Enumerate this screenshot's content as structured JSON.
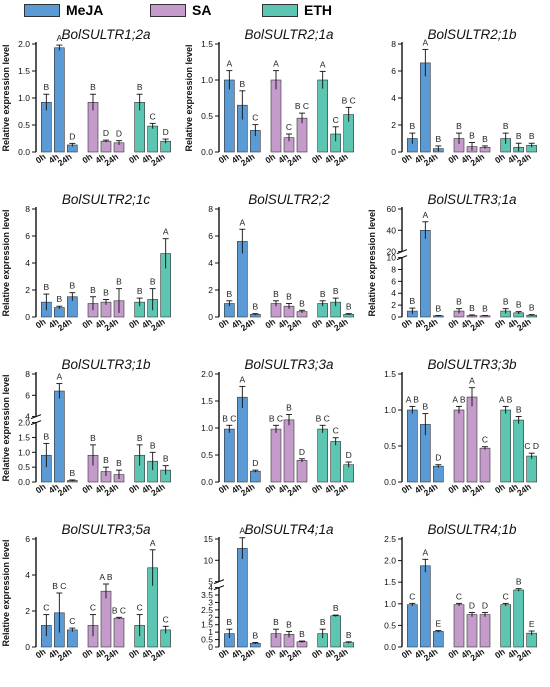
{
  "legend": [
    {
      "name": "MeJA",
      "color": "#5b9bd5"
    },
    {
      "name": "SA",
      "color": "#c49bcb"
    },
    {
      "name": "ETH",
      "color": "#5cc6b2"
    }
  ],
  "chart_data": [
    {
      "type": "bar",
      "title": "BolSULTR1;2a",
      "ylabel": "Relative expression level",
      "ylim": [
        0,
        2
      ],
      "yticks": [
        "0.0",
        "0.5",
        "1.0",
        "1.5",
        "2.0"
      ],
      "categories": [
        "0h",
        "4h",
        "24h"
      ],
      "series": [
        {
          "name": "MeJA",
          "values": [
            0.92,
            1.93,
            0.13
          ],
          "errors": [
            0.15,
            0.05,
            0.03
          ],
          "letters": [
            "B",
            "A",
            "D"
          ]
        },
        {
          "name": "SA",
          "values": [
            0.92,
            0.2,
            0.17
          ],
          "errors": [
            0.15,
            0.02,
            0.04
          ],
          "letters": [
            "B",
            "D",
            "D"
          ]
        },
        {
          "name": "ETH",
          "values": [
            0.92,
            0.48,
            0.2
          ],
          "errors": [
            0.15,
            0.05,
            0.04
          ],
          "letters": [
            "B",
            "C",
            "D"
          ]
        }
      ]
    },
    {
      "type": "bar",
      "title": "BolSULTR2;1a",
      "ylabel": "Relative expression level",
      "ylim": [
        0,
        1.5
      ],
      "yticks": [
        "0.0",
        "0.5",
        "1.0",
        "1.5"
      ],
      "categories": [
        "0h",
        "4h",
        "24h"
      ],
      "series": [
        {
          "name": "MeJA",
          "values": [
            1.0,
            0.65,
            0.3
          ],
          "errors": [
            0.13,
            0.2,
            0.08
          ],
          "letters": [
            "A",
            "B",
            "C"
          ]
        },
        {
          "name": "SA",
          "values": [
            1.0,
            0.2,
            0.47
          ],
          "errors": [
            0.13,
            0.05,
            0.07
          ],
          "letters": [
            "A",
            "C",
            "B C"
          ]
        },
        {
          "name": "ETH",
          "values": [
            1.0,
            0.25,
            0.52
          ],
          "errors": [
            0.12,
            0.1,
            0.1
          ],
          "letters": [
            "A",
            "C",
            "B C"
          ]
        }
      ]
    },
    {
      "type": "bar",
      "title": "BolSULTR2;1b",
      "ylabel": "",
      "ylim": [
        0,
        8
      ],
      "yticks": [
        "0",
        "2",
        "4",
        "6",
        "8"
      ],
      "categories": [
        "0h",
        "4h",
        "24h"
      ],
      "series": [
        {
          "name": "MeJA",
          "values": [
            1.0,
            6.6,
            0.25
          ],
          "errors": [
            0.4,
            1.0,
            0.2
          ],
          "letters": [
            "B",
            "A",
            "B"
          ]
        },
        {
          "name": "SA",
          "values": [
            1.0,
            0.4,
            0.35
          ],
          "errors": [
            0.4,
            0.3,
            0.1
          ],
          "letters": [
            "B",
            "B",
            "B"
          ]
        },
        {
          "name": "ETH",
          "values": [
            1.0,
            0.35,
            0.5
          ],
          "errors": [
            0.4,
            0.3,
            0.15
          ],
          "letters": [
            "B",
            "B",
            "B"
          ]
        }
      ]
    },
    {
      "type": "bar",
      "title": "BolSULTR2;1c",
      "ylabel": "Relative expression level",
      "ylim": [
        0,
        8
      ],
      "yticks": [
        "0",
        "2",
        "4",
        "6",
        "8"
      ],
      "categories": [
        "0h",
        "4h",
        "24h"
      ],
      "series": [
        {
          "name": "MeJA",
          "values": [
            1.1,
            0.7,
            1.5
          ],
          "errors": [
            0.6,
            0.1,
            0.3
          ],
          "letters": [
            "B",
            "B",
            "B"
          ]
        },
        {
          "name": "SA",
          "values": [
            1.0,
            1.1,
            1.2
          ],
          "errors": [
            0.5,
            0.2,
            0.9
          ],
          "letters": [
            "B",
            "B",
            "B"
          ]
        },
        {
          "name": "ETH",
          "values": [
            1.1,
            1.3,
            4.7
          ],
          "errors": [
            0.3,
            0.8,
            1.1
          ],
          "letters": [
            "B",
            "B",
            "A"
          ]
        }
      ]
    },
    {
      "type": "bar",
      "title": "BolSULTR2;2",
      "ylabel": "",
      "ylim": [
        0,
        8
      ],
      "yticks": [
        "0",
        "2",
        "4",
        "6",
        "8"
      ],
      "categories": [
        "0h",
        "4h",
        "24h"
      ],
      "series": [
        {
          "name": "MeJA",
          "values": [
            1.0,
            5.6,
            0.2
          ],
          "errors": [
            0.2,
            0.9,
            0.05
          ],
          "letters": [
            "B",
            "A",
            "B"
          ]
        },
        {
          "name": "SA",
          "values": [
            1.0,
            0.8,
            0.4
          ],
          "errors": [
            0.2,
            0.2,
            0.1
          ],
          "letters": [
            "B",
            "B",
            "B"
          ]
        },
        {
          "name": "ETH",
          "values": [
            1.0,
            1.1,
            0.2
          ],
          "errors": [
            0.2,
            0.3,
            0.05
          ],
          "letters": [
            "B",
            "B",
            "B"
          ]
        }
      ]
    },
    {
      "type": "bar",
      "title": "BolSULTR3;1a",
      "ylabel": "Relative expression level",
      "yaxis_break": [
        10,
        20
      ],
      "yticks": [
        "0",
        "2",
        "4",
        "6",
        "8",
        "10",
        "20",
        "40",
        "60"
      ],
      "categories": [
        "0h",
        "4h",
        "24h"
      ],
      "series": [
        {
          "name": "MeJA",
          "values": [
            1.0,
            40,
            0.2
          ],
          "errors": [
            0.5,
            8,
            0.05
          ],
          "letters": [
            "B",
            "A",
            "B"
          ]
        },
        {
          "name": "SA",
          "values": [
            1.0,
            0.25,
            0.2
          ],
          "errors": [
            0.4,
            0.1,
            0.05
          ],
          "letters": [
            "B",
            "B",
            "B"
          ]
        },
        {
          "name": "ETH",
          "values": [
            1.0,
            0.7,
            0.3
          ],
          "errors": [
            0.4,
            0.2,
            0.1
          ],
          "letters": [
            "B",
            "B",
            "B"
          ]
        }
      ]
    },
    {
      "type": "bar",
      "title": "BolSULTR3;1b",
      "ylabel": "Relative expression level",
      "yaxis_break": [
        2,
        4
      ],
      "yticks": [
        "0.0",
        "0.5",
        "1.0",
        "1.5",
        "2.0",
        "4",
        "6",
        "8"
      ],
      "categories": [
        "0h",
        "4h",
        "24h"
      ],
      "series": [
        {
          "name": "MeJA",
          "values": [
            0.9,
            6.4,
            0.05
          ],
          "errors": [
            0.4,
            0.7,
            0.02
          ],
          "letters": [
            "B",
            "A",
            "B"
          ]
        },
        {
          "name": "SA",
          "values": [
            0.9,
            0.35,
            0.25
          ],
          "errors": [
            0.35,
            0.15,
            0.15
          ],
          "letters": [
            "B",
            "B",
            "B"
          ]
        },
        {
          "name": "ETH",
          "values": [
            0.9,
            0.7,
            0.4
          ],
          "errors": [
            0.35,
            0.3,
            0.15
          ],
          "letters": [
            "B",
            "B",
            "B"
          ]
        }
      ]
    },
    {
      "type": "bar",
      "title": "BolSULTR3;3a",
      "ylabel": "",
      "ylim": [
        0,
        2
      ],
      "yticks": [
        "0.0",
        "0.5",
        "1.0",
        "1.5",
        "2.0"
      ],
      "categories": [
        "0h",
        "4h",
        "24h"
      ],
      "series": [
        {
          "name": "MeJA",
          "values": [
            0.98,
            1.57,
            0.2
          ],
          "errors": [
            0.07,
            0.2,
            0.02
          ],
          "letters": [
            "B C",
            "A",
            "D"
          ]
        },
        {
          "name": "SA",
          "values": [
            0.98,
            1.15,
            0.4
          ],
          "errors": [
            0.07,
            0.1,
            0.03
          ],
          "letters": [
            "B C",
            "B",
            "D"
          ]
        },
        {
          "name": "ETH",
          "values": [
            0.98,
            0.75,
            0.32
          ],
          "errors": [
            0.07,
            0.07,
            0.05
          ],
          "letters": [
            "B C",
            "C",
            "D"
          ]
        }
      ]
    },
    {
      "type": "bar",
      "title": "BolSULTR3;3b",
      "ylabel": "",
      "ylim": [
        0,
        1.5
      ],
      "yticks": [
        "0.0",
        "0.5",
        "1.0",
        "1.5"
      ],
      "categories": [
        "0h",
        "4h",
        "24h"
      ],
      "series": [
        {
          "name": "MeJA",
          "values": [
            1.0,
            0.8,
            0.22
          ],
          "errors": [
            0.05,
            0.15,
            0.02
          ],
          "letters": [
            "A B",
            "B",
            "D"
          ]
        },
        {
          "name": "SA",
          "values": [
            1.0,
            1.18,
            0.47
          ],
          "errors": [
            0.05,
            0.13,
            0.02
          ],
          "letters": [
            "A B",
            "A",
            "C"
          ]
        },
        {
          "name": "ETH",
          "values": [
            1.0,
            0.86,
            0.36
          ],
          "errors": [
            0.05,
            0.05,
            0.04
          ],
          "letters": [
            "A B",
            "B",
            "C D"
          ]
        }
      ]
    },
    {
      "type": "bar",
      "title": "BolSULTR3;5a",
      "ylabel": "Relative expression level",
      "ylim": [
        0,
        6
      ],
      "yticks": [
        "0",
        "2",
        "4",
        "6"
      ],
      "categories": [
        "0h",
        "4h",
        "24h"
      ],
      "series": [
        {
          "name": "MeJA",
          "values": [
            1.2,
            1.9,
            0.95
          ],
          "errors": [
            0.6,
            1.1,
            0.1
          ],
          "letters": [
            "C",
            "B C",
            "C"
          ]
        },
        {
          "name": "SA",
          "values": [
            1.2,
            3.1,
            1.6
          ],
          "errors": [
            0.6,
            0.4,
            0.05
          ],
          "letters": [
            "C",
            "A B",
            "B C"
          ]
        },
        {
          "name": "ETH",
          "values": [
            1.2,
            4.4,
            0.95
          ],
          "errors": [
            0.6,
            1.0,
            0.2
          ],
          "letters": [
            "C",
            "A",
            "C"
          ]
        }
      ]
    },
    {
      "type": "bar",
      "title": "BolSULTR4;1a",
      "ylabel": "",
      "yaxis_break": [
        4,
        5
      ],
      "yticks": [
        "0",
        "0.5",
        "1",
        "1.5",
        "2",
        "2.5",
        "3",
        "3.5",
        "4",
        "5",
        "10",
        "15"
      ],
      "categories": [
        "0h",
        "4h",
        "24h"
      ],
      "series": [
        {
          "name": "MeJA",
          "values": [
            0.9,
            12.8,
            0.25
          ],
          "errors": [
            0.3,
            2.5,
            0.05
          ],
          "letters": [
            "B",
            "A",
            "B"
          ]
        },
        {
          "name": "SA",
          "values": [
            0.9,
            0.85,
            0.35
          ],
          "errors": [
            0.3,
            0.2,
            0.05
          ],
          "letters": [
            "B",
            "B",
            "B"
          ]
        },
        {
          "name": "ETH",
          "values": [
            0.9,
            2.1,
            0.3
          ],
          "errors": [
            0.3,
            0.05,
            0.05
          ],
          "letters": [
            "B",
            "B",
            "B"
          ]
        }
      ]
    },
    {
      "type": "bar",
      "title": "BolSULTR4;1b",
      "ylabel": "",
      "ylim": [
        0,
        2.5
      ],
      "yticks": [
        "0.0",
        "0.5",
        "1.0",
        "1.5",
        "2.0",
        "2.5"
      ],
      "categories": [
        "0h",
        "4h",
        "24h"
      ],
      "series": [
        {
          "name": "MeJA",
          "values": [
            0.98,
            1.88,
            0.36
          ],
          "errors": [
            0.03,
            0.15,
            0.02
          ],
          "letters": [
            "C",
            "A",
            "E"
          ]
        },
        {
          "name": "SA",
          "values": [
            0.98,
            0.75,
            0.75
          ],
          "errors": [
            0.03,
            0.05,
            0.05
          ],
          "letters": [
            "C",
            "D",
            "D"
          ]
        },
        {
          "name": "ETH",
          "values": [
            0.98,
            1.32,
            0.32
          ],
          "errors": [
            0.03,
            0.03,
            0.05
          ],
          "letters": [
            "C",
            "B",
            "E"
          ]
        }
      ]
    }
  ]
}
